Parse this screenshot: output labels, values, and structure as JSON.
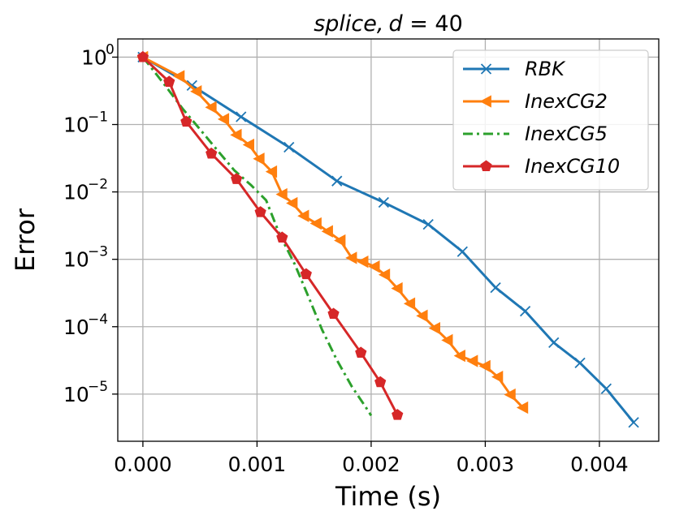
{
  "chart_data": {
    "type": "line",
    "title_text": "splice,",
    "title_d": "d",
    "title_eq": " = 40",
    "xlabel": "Time (s)",
    "ylabel": "Error",
    "xlim": [
      -0.00022,
      0.00452
    ],
    "ylim_log10": [
      -5.7,
      0.27
    ],
    "x_ticks": [
      0.0,
      0.001,
      0.002,
      0.003,
      0.004
    ],
    "x_tick_labels": [
      "0.000",
      "0.001",
      "0.002",
      "0.003",
      "0.004"
    ],
    "y_ticks_exp": [
      0,
      -1,
      -2,
      -3,
      -4,
      -5
    ],
    "y_tick_base": "10",
    "y_tick_exponents": [
      "0",
      "−1",
      "−2",
      "−3",
      "−4",
      "−5"
    ],
    "grid": true,
    "legend_position": "top-right",
    "series": [
      {
        "name": "RBK",
        "color": "#1f77b4",
        "marker": "x",
        "linestyle": "solid",
        "x": [
          0.0,
          0.00043,
          0.00086,
          0.00128,
          0.0017,
          0.00211,
          0.0025,
          0.0028,
          0.00309,
          0.00335,
          0.0036,
          0.00383,
          0.00406,
          0.0043
        ],
        "y": [
          1.0,
          0.38,
          0.13,
          0.046,
          0.0145,
          0.007,
          0.0033,
          0.0013,
          0.00038,
          0.00017,
          5.8e-05,
          2.9e-05,
          1.2e-05,
          3.8e-06
        ]
      },
      {
        "name": "InexCG2",
        "color": "#ff7f0e",
        "marker": "triangle-left",
        "linestyle": "solid",
        "x": [
          0.0,
          0.00032,
          0.00047,
          0.0006,
          0.00071,
          0.00082,
          0.00093,
          0.00102,
          0.00113,
          0.00122,
          0.00131,
          0.00141,
          0.00152,
          0.00162,
          0.00173,
          0.00183,
          0.00193,
          0.00203,
          0.00212,
          0.00223,
          0.00234,
          0.00245,
          0.00256,
          0.00267,
          0.00278,
          0.00289,
          0.003,
          0.00311,
          0.00322,
          0.00333
        ],
        "y": [
          1.0,
          0.52,
          0.31,
          0.18,
          0.12,
          0.07,
          0.05,
          0.031,
          0.02,
          0.0092,
          0.0068,
          0.0044,
          0.0034,
          0.0026,
          0.0019,
          0.00105,
          0.00092,
          0.00078,
          0.00059,
          0.00037,
          0.00022,
          0.000145,
          9.5e-05,
          6.3e-05,
          3.7e-05,
          3.1e-05,
          2.6e-05,
          1.8e-05,
          9.8e-06,
          6.3e-06
        ]
      },
      {
        "name": "InexCG5",
        "color": "#2ca02c",
        "marker": "none",
        "linestyle": "dashdot",
        "x": [
          0.0,
          0.00018,
          0.00035,
          0.0005,
          0.00065,
          0.0008,
          0.00095,
          0.00108,
          0.0012,
          0.00133,
          0.00145,
          0.00157,
          0.0017,
          0.00183,
          0.00195,
          0.002
        ],
        "y": [
          1.0,
          0.41,
          0.17,
          0.085,
          0.042,
          0.021,
          0.0125,
          0.0075,
          0.0023,
          0.00085,
          0.00028,
          9e-05,
          3.2e-05,
          1.3e-05,
          6.5e-06,
          4.8e-06
        ]
      },
      {
        "name": "InexCG10",
        "color": "#d62728",
        "marker": "pentagon",
        "linestyle": "solid",
        "x": [
          0.0,
          0.00023,
          0.00038,
          0.0006,
          0.00082,
          0.00103,
          0.00122,
          0.00143,
          0.00167,
          0.00191,
          0.00208,
          0.00223
        ],
        "y": [
          1.0,
          0.43,
          0.11,
          0.037,
          0.0155,
          0.005,
          0.0021,
          0.0006,
          0.000155,
          4.1e-05,
          1.5e-05,
          4.9e-06
        ]
      }
    ]
  }
}
